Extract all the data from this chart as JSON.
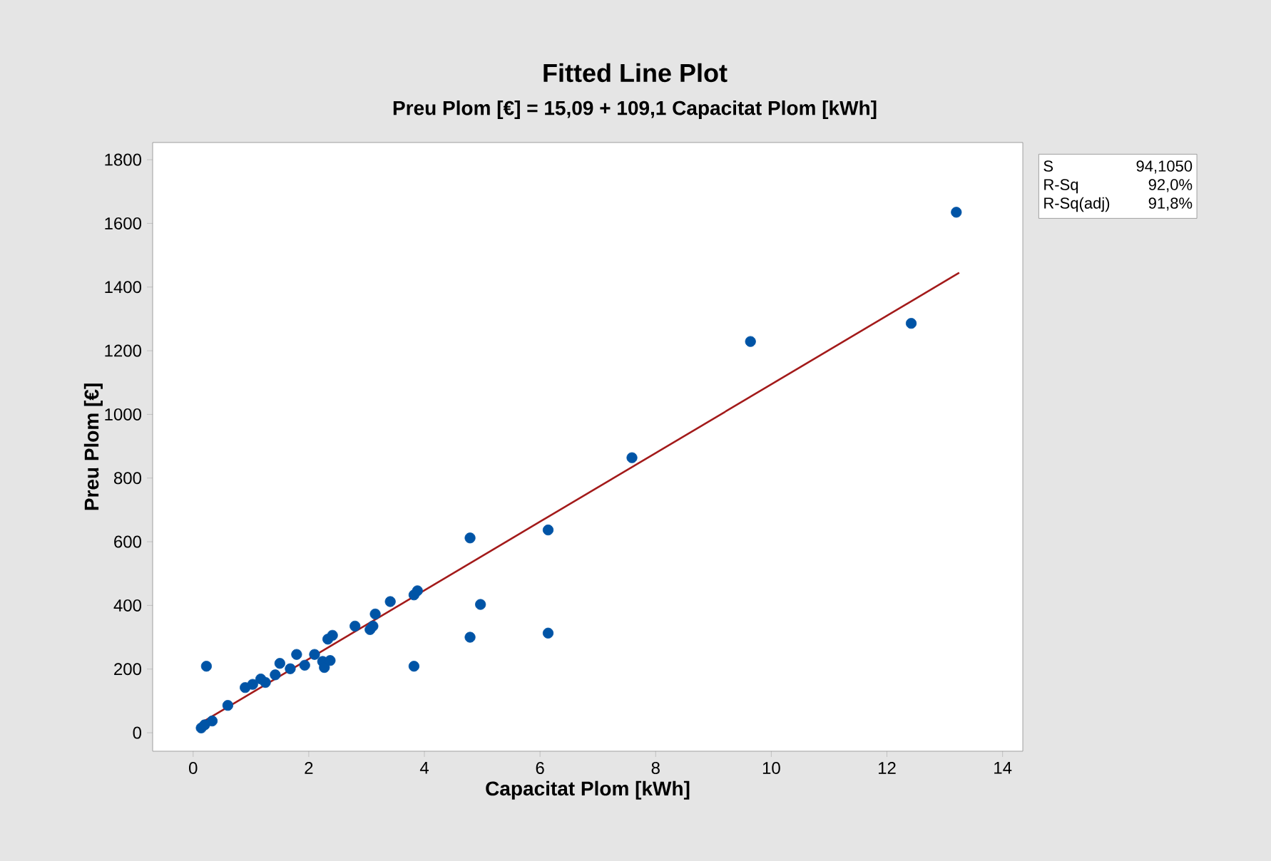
{
  "chart_data": {
    "type": "scatter",
    "title": "Fitted Line Plot",
    "subtitle": "Preu Plom [€] = 15,09 + 109,1 Capacitat Plom [kWh]",
    "xlabel": "Capacitat Plom [kWh]",
    "ylabel": "Preu Plom [€]",
    "xlim": [
      -0.7,
      14.35
    ],
    "ylim": [
      -58,
      1854
    ],
    "xticks": [
      0,
      2,
      4,
      6,
      8,
      10,
      12,
      14
    ],
    "yticks": [
      0,
      200,
      400,
      600,
      800,
      1000,
      1200,
      1400,
      1600,
      1800
    ],
    "grid": false,
    "series": [
      {
        "marker": "circle",
        "color": "#0054a6",
        "x": [
          0.14,
          0.2,
          0.33,
          0.23,
          0.6,
          0.9,
          1.03,
          1.17,
          1.25,
          1.42,
          1.5,
          1.68,
          1.79,
          1.93,
          2.1,
          2.24,
          2.27,
          2.37,
          2.33,
          2.41,
          2.8,
          3.06,
          3.11,
          3.15,
          3.41,
          3.82,
          3.88,
          3.82,
          4.79,
          4.79,
          4.97,
          6.14,
          6.14,
          7.59,
          9.64,
          12.42,
          13.2
        ],
        "values": [
          15,
          25,
          37,
          209,
          86,
          142,
          152,
          169,
          158,
          182,
          218,
          201,
          246,
          212,
          246,
          224,
          205,
          227,
          294,
          306,
          335,
          324,
          335,
          373,
          412,
          433,
          446,
          209,
          612,
          300,
          403,
          637,
          313,
          864,
          1229,
          1286,
          1635
        ]
      },
      {
        "type": "line",
        "marker": "none",
        "color": "#a31a1a",
        "x": [
          0.14,
          13.25
        ],
        "values": [
          31,
          1445
        ]
      }
    ],
    "annotations": [
      "S",
      "94,1050",
      "R-Sq",
      "92,0%",
      "R-Sq(adj)",
      "91,8%"
    ]
  }
}
